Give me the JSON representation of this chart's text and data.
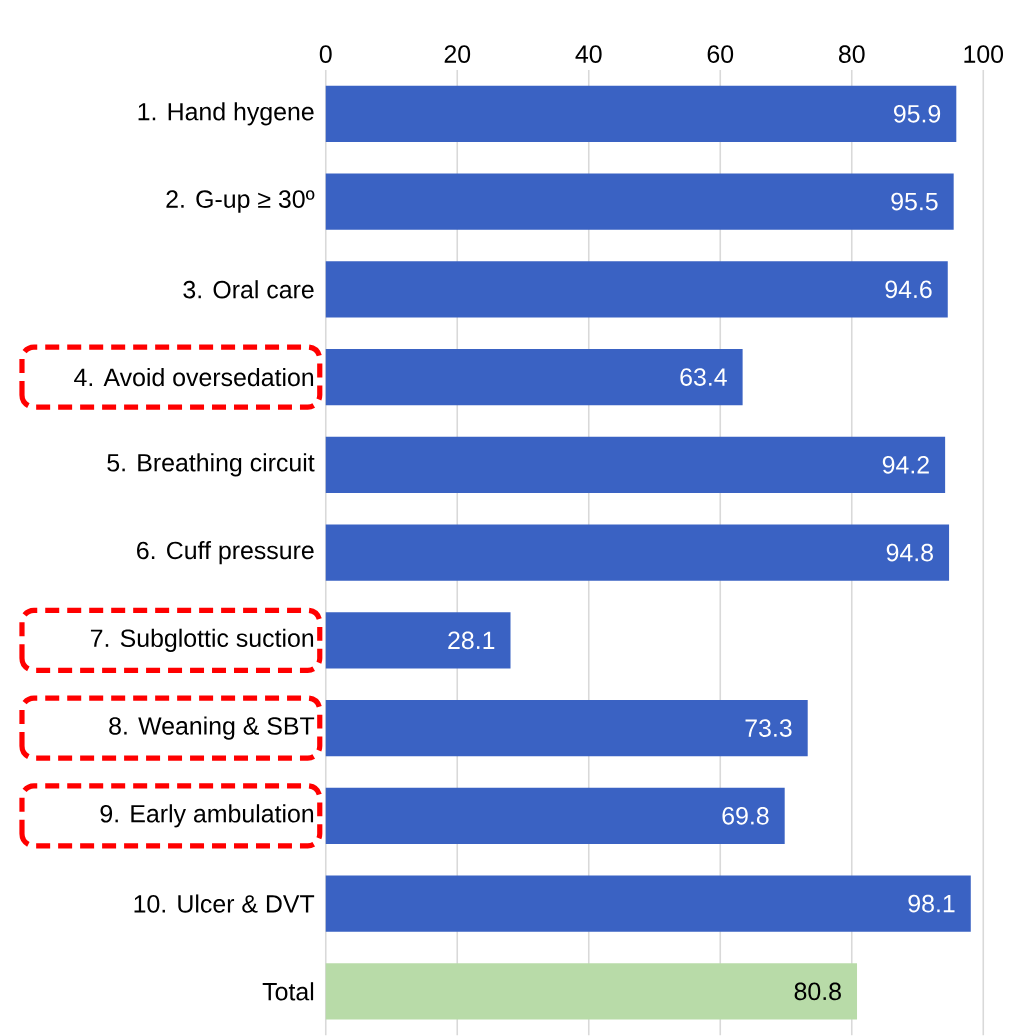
{
  "chart_data": {
    "type": "bar",
    "orientation": "horizontal",
    "categories": [
      "1. Hand hygene",
      "2. G-up ≥ 30º",
      "3. Oral care",
      "4. Avoid oversedation",
      "5. Breathing circuit",
      "6. Cuff pressure",
      "7. Subglottic suction",
      "8. Weaning & SBT",
      "9. Early ambulation",
      "10. Ulcer & DVT",
      "Total"
    ],
    "values": [
      95.9,
      95.5,
      94.6,
      63.4,
      94.2,
      94.8,
      28.1,
      73.3,
      69.8,
      98.1,
      80.8
    ],
    "colors": [
      "#3a62c3",
      "#3a62c3",
      "#3a62c3",
      "#3a62c3",
      "#3a62c3",
      "#3a62c3",
      "#3a62c3",
      "#3a62c3",
      "#3a62c3",
      "#3a62c3",
      "#b8dba8"
    ],
    "xlim": [
      0,
      100
    ],
    "xticks": [
      0,
      20,
      40,
      60,
      80,
      100
    ],
    "grid": "x",
    "data_labels": true
  }
}
